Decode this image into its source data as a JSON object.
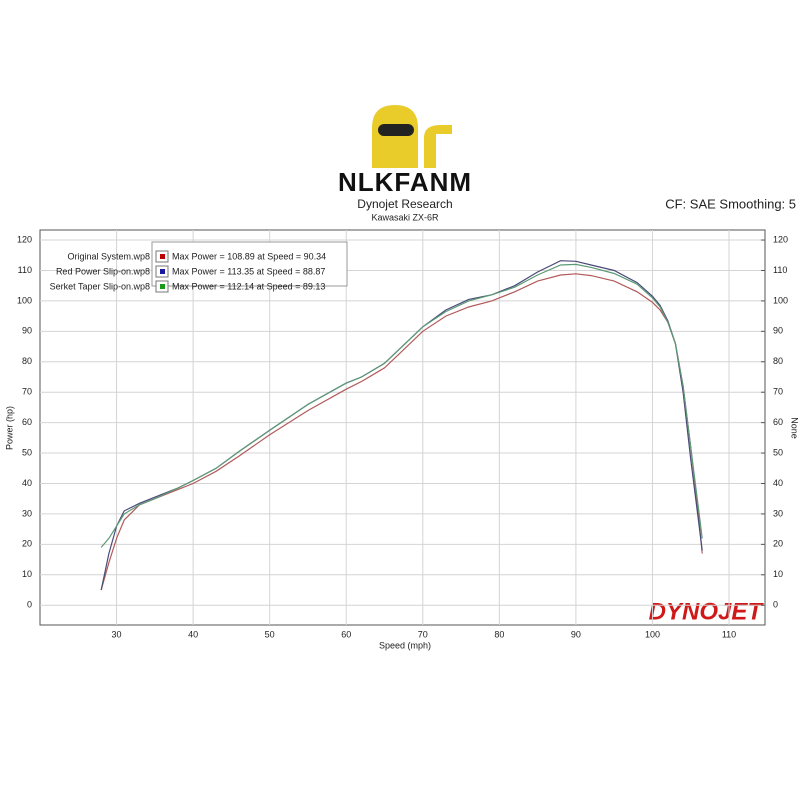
{
  "chart_data": {
    "type": "line",
    "brand": "NLKFANM",
    "title": "Dynojet Research",
    "subtitle": "Kawasaki ZX-6R",
    "correction": "CF: SAE Smoothing: 5",
    "logo": "DYNOJET",
    "x_label": "Speed (mph)",
    "y_label": "Power (hp)",
    "y2_label": "None",
    "xlim": [
      20,
      114.7
    ],
    "ylim": [
      -6.5,
      123.3
    ],
    "y2lim": [
      -6.5,
      123.3
    ],
    "xticks": [
      30,
      40,
      50,
      60,
      70,
      80,
      90,
      100,
      110
    ],
    "yticks": [
      0,
      10,
      20,
      30,
      40,
      50,
      60,
      70,
      80,
      90,
      100,
      110,
      120
    ],
    "y2ticks": [
      0,
      10,
      20,
      30,
      40,
      50,
      60,
      70,
      80,
      90,
      100,
      110,
      120
    ],
    "grid": true,
    "legend": "top-left",
    "x": [
      28,
      29,
      30,
      31,
      33,
      35,
      38,
      40,
      43,
      46,
      50,
      55,
      60,
      62,
      65,
      70,
      73,
      76,
      79,
      82,
      85,
      88,
      90,
      92,
      95,
      98,
      100,
      101,
      102,
      103,
      104,
      105,
      106,
      106.5
    ],
    "series": [
      {
        "name": "Original System.wp8",
        "info": "Max Power = 108.89 at Speed = 90.34",
        "color": "#b25a5a",
        "key_color": "#c00000",
        "values": [
          5,
          14,
          22,
          28,
          33,
          35,
          38,
          40,
          44,
          49,
          56,
          64,
          71,
          73.5,
          78,
          90,
          95,
          98,
          100,
          103,
          106.5,
          108.5,
          108.9,
          108.3,
          106.5,
          103,
          99.5,
          97,
          93,
          86,
          72,
          52,
          30,
          17
        ]
      },
      {
        "name": "Red Power Slip-on.wp8",
        "info": "Max Power = 113.35 at Speed = 88.87",
        "color": "#4a4a7a",
        "key_color": "#1a1aa0",
        "values": [
          5,
          17,
          26,
          31,
          33.5,
          35.5,
          38.5,
          41,
          45,
          50.5,
          57.5,
          66,
          73,
          75,
          79.5,
          91.5,
          97,
          100.5,
          102,
          105,
          109.5,
          113.2,
          113,
          111.8,
          110,
          106,
          101.5,
          98.5,
          93.5,
          86,
          70,
          48,
          28,
          18
        ]
      },
      {
        "name": "Serket Taper Slip-on.wp8",
        "info": "Max Power = 112.14 at Speed = 89.13",
        "color": "#5c9a76",
        "key_color": "#1a9a1a",
        "values": [
          19,
          22,
          26,
          30,
          33,
          35,
          38.5,
          41,
          45,
          50.5,
          57.5,
          66,
          73,
          75,
          79.5,
          91.5,
          96.5,
          100,
          102,
          104.5,
          108.5,
          111.8,
          112,
          111,
          109,
          105.5,
          101,
          98,
          93,
          86,
          72,
          52,
          32,
          22
        ]
      }
    ]
  }
}
